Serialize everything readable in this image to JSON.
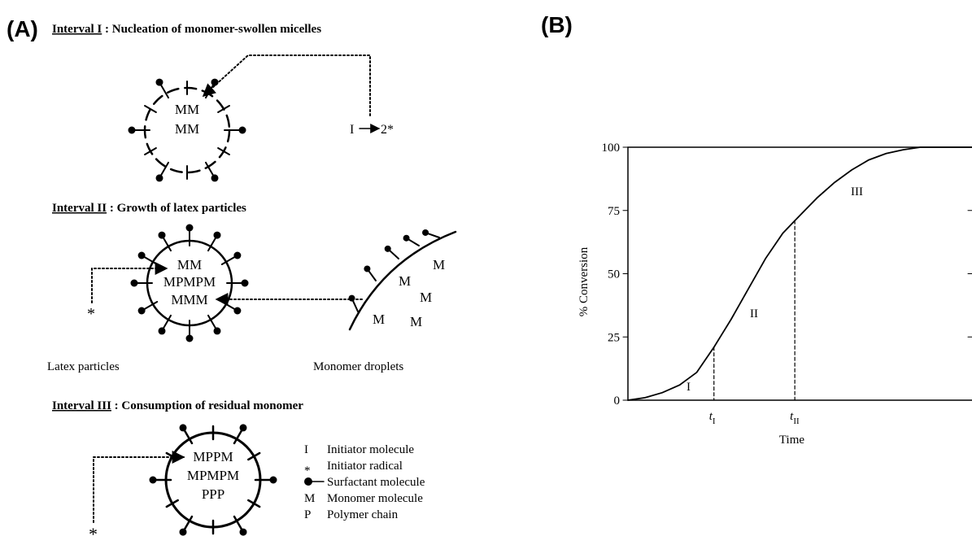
{
  "panel_a": {
    "label": "(A)",
    "interval_1": {
      "heading": "Interval  I",
      "title": " : Nucleation of monomer-swollen micelles",
      "core": [
        "MM",
        "MM"
      ],
      "reaction": {
        "left": "I",
        "right": "2*"
      }
    },
    "interval_2": {
      "heading": "Interval  II",
      "title": " : Growth of latex particles",
      "core": [
        "MM",
        "MPMPM",
        "MMM"
      ],
      "radical": "*",
      "droplet": [
        "M",
        "M",
        "M",
        "M",
        "M"
      ],
      "captions": [
        "Latex  particles",
        "Monomer  droplets"
      ]
    },
    "interval_3": {
      "heading": "Interval  III",
      "title": " : Consumption of residual monomer",
      "core": [
        "MPPM",
        "MPMPM",
        "PPP"
      ],
      "radical": "*"
    },
    "legend": [
      {
        "symbol": "I",
        "text": "Initiator molecule"
      },
      {
        "symbol": "*",
        "text": "Initiator radical"
      },
      {
        "symbol": null,
        "text": "Surfactant molecule"
      },
      {
        "symbol": "M",
        "text": "Monomer molecule"
      },
      {
        "symbol": "P",
        "text": "Polymer chain"
      }
    ]
  },
  "chart_data": {
    "type": "line",
    "panel_label": "(B)",
    "xlabel": "Time",
    "ylabel": "% Conversion",
    "x": [
      0,
      0.5,
      1,
      1.5,
      2,
      2.5,
      3,
      3.5,
      4,
      4.5,
      4.85,
      5.5,
      6,
      6.5,
      7,
      7.5,
      8,
      8.5,
      9,
      10
    ],
    "values": [
      0,
      1,
      3,
      6,
      11,
      21,
      32,
      44,
      56,
      66,
      71,
      80,
      86,
      91,
      95,
      97.5,
      99,
      100,
      100,
      100
    ],
    "color": "#000000",
    "xlim": [
      0,
      10
    ],
    "ylim": [
      0,
      100
    ],
    "yticks": [
      0,
      25,
      50,
      75,
      100
    ],
    "grid": false,
    "markers": [
      {
        "label": "t",
        "subscript": "I",
        "x": 2.5,
        "y": 21
      },
      {
        "label": "t",
        "subscript": "II",
        "x": 4.85,
        "y": 71
      }
    ],
    "regions": [
      "I",
      "II",
      "III"
    ]
  }
}
